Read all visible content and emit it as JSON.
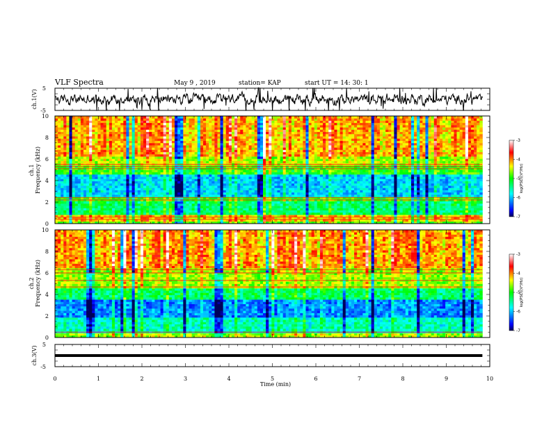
{
  "header": {
    "title": "VLF Spectra",
    "date": "May 9  , 2019",
    "station": "station= KAP",
    "start": "start  UT  =   14: 30: 1"
  },
  "chart_data": [
    {
      "type": "line",
      "id": "ch1-waveform",
      "ylabel": "ch.1(V)",
      "yticks": [
        "5",
        "-5"
      ],
      "ylim": [
        -5,
        5
      ],
      "xlim": [
        0,
        10
      ],
      "x_extent": [
        0,
        9.83
      ],
      "description_level": "noisy waveform fluctuating roughly between -3 and 3 V"
    },
    {
      "type": "heatmap",
      "id": "ch1-spectrogram",
      "ylabel": "ch.1\nFrequency (kHz)",
      "ylabel_lines": [
        "ch.1",
        "Frequency (kHz)"
      ],
      "ylim": [
        0,
        10
      ],
      "yticks": [
        "0",
        "2",
        "4",
        "6",
        "8",
        "10"
      ],
      "xlim": [
        0,
        10
      ],
      "x_extent": [
        0,
        9.83
      ],
      "colorbar": {
        "label": "log(PSD)(V²/Hz)",
        "ticks": [
          "-3",
          "-4",
          "-5",
          "-6",
          "-7"
        ],
        "range": [
          -7,
          -3
        ]
      },
      "bands": [
        {
          "f": [
            0,
            0.3
          ],
          "level": -4.8
        },
        {
          "f": [
            0.3,
            0.8
          ],
          "level": -4.2
        },
        {
          "f": [
            0.8,
            2.0
          ],
          "level": -5.3
        },
        {
          "f": [
            2.0,
            2.6
          ],
          "level": -4.9
        },
        {
          "f": [
            2.6,
            4.6
          ],
          "level": -5.9
        },
        {
          "f": [
            4.6,
            5.4
          ],
          "level": -4.9
        },
        {
          "f": [
            5.4,
            6.2
          ],
          "level": -4.5
        },
        {
          "f": [
            6.2,
            10.0
          ],
          "level": -4.1
        }
      ],
      "line_freqs": [
        0.4,
        0.6,
        2.2,
        2.4,
        5.1,
        5.3,
        5.5
      ]
    },
    {
      "type": "heatmap",
      "id": "ch2-spectrogram",
      "ylabel": "ch.2\nFrequency (kHz)",
      "ylabel_lines": [
        "ch.2",
        "Frequency (kHz)"
      ],
      "ylim": [
        0,
        10
      ],
      "yticks": [
        "0",
        "2",
        "4",
        "6",
        "8",
        "10"
      ],
      "xlim": [
        0,
        10
      ],
      "x_extent": [
        0,
        9.83
      ],
      "colorbar": {
        "label": "log(PSD)(V²/Hz)",
        "ticks": [
          "-3",
          "-4",
          "-5",
          "-6",
          "-7"
        ],
        "range": [
          -7,
          -3
        ]
      },
      "bands": [
        {
          "f": [
            0,
            0.4
          ],
          "level": -4.6
        },
        {
          "f": [
            0.4,
            1.8
          ],
          "level": -5.6
        },
        {
          "f": [
            1.8,
            3.6
          ],
          "level": -6.2
        },
        {
          "f": [
            3.6,
            4.6
          ],
          "level": -5.3
        },
        {
          "f": [
            4.6,
            6.4
          ],
          "level": -4.6
        },
        {
          "f": [
            6.4,
            10.0
          ],
          "level": -4.1
        }
      ],
      "line_freqs": [
        0.5,
        4.7,
        5.3,
        6.0,
        6.3
      ]
    },
    {
      "type": "line",
      "id": "ch3-waveform",
      "ylabel": "ch.3(V)",
      "yticks": [
        "5",
        "-5"
      ],
      "ylim": [
        -5,
        5
      ],
      "xlim": [
        0,
        10
      ],
      "x_extent": [
        0,
        9.83
      ],
      "constant_value": 0
    }
  ],
  "xaxis": {
    "label": "Time  (min)",
    "ticks": [
      "0",
      "1",
      "2",
      "3",
      "4",
      "5",
      "6",
      "7",
      "8",
      "9",
      "10"
    ]
  },
  "colors": {
    "waveform": "#000000",
    "colormap": [
      "#000080",
      "#0000ff",
      "#00ffff",
      "#00ff00",
      "#ffff00",
      "#ff0000",
      "#ffffff"
    ]
  }
}
